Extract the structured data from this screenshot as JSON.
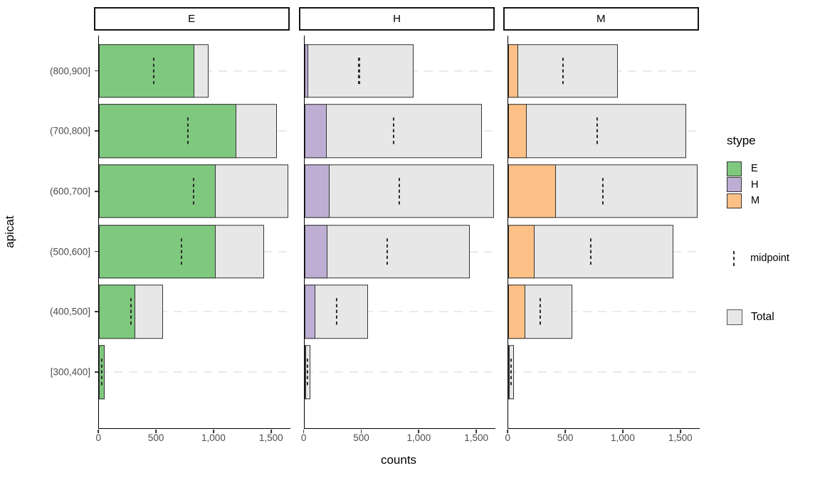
{
  "chart_data": {
    "type": "bar",
    "orientation": "horizontal",
    "faceted_by": "stype",
    "xlabel": "counts",
    "ylabel": "apicat",
    "x_ticks": [
      0,
      500,
      1000,
      1500
    ],
    "x_tick_labels": [
      "0",
      "500",
      "1,000",
      "1,500"
    ],
    "xlim": [
      0,
      1666
    ],
    "grid": "horizontal-dashed",
    "legend_position": "right",
    "categories": [
      "(800,900]",
      "(700,800]",
      "(600,700]",
      "(500,600]",
      "(400,500]",
      "[300,400]"
    ],
    "totals": [
      950,
      1545,
      1645,
      1435,
      555,
      50
    ],
    "midpoints": [
      475,
      772.5,
      822.5,
      717.5,
      277.5,
      25
    ],
    "facets": [
      {
        "label": "E",
        "color": "#7FC97F",
        "values": [
          830,
          1190,
          1015,
          1010,
          315,
          46
        ]
      },
      {
        "label": "H",
        "color": "#BEAED4",
        "values": [
          35,
          195,
          220,
          200,
          95,
          2
        ]
      },
      {
        "label": "M",
        "color": "#FDC086",
        "values": [
          85,
          160,
          410,
          225,
          145,
          2
        ]
      }
    ]
  },
  "legend": {
    "title": "stype",
    "entries": [
      {
        "label": "E",
        "color": "#7FC97F"
      },
      {
        "label": "H",
        "color": "#BEAED4"
      },
      {
        "label": "M",
        "color": "#FDC086"
      }
    ],
    "midpoint_label": "midpoint",
    "total_label": "Total"
  },
  "colors": {
    "total_fill": "#E7E7E7",
    "bar_border": "#333333",
    "grid": "#EAEAEA",
    "axis": "#000000",
    "tick_label": "#4D4D4D"
  }
}
